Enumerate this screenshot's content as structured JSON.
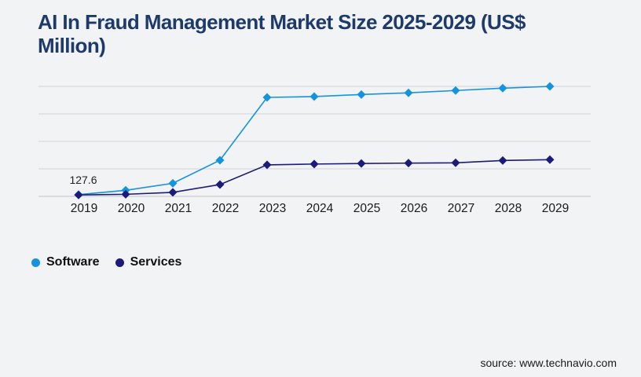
{
  "header": {
    "title": "AI In Fraud Management Market Size 2025-2029 (US$ Million)"
  },
  "chart_data": {
    "type": "line",
    "title": "AI In Fraud Management Market Size 2025-2029 (US$ Million)",
    "categories": [
      "2019",
      "2020",
      "2021",
      "2022",
      "2023",
      "2024",
      "2025",
      "2026",
      "2027",
      "2028",
      "2029"
    ],
    "series": [
      {
        "name": "Software",
        "color": "#1593dd",
        "values": [
          127.6,
          440,
          950,
          2630,
          7200,
          7260,
          7410,
          7530,
          7700,
          7870,
          8000
        ]
      },
      {
        "name": "Services",
        "color": "#1c1c78",
        "values": [
          100,
          150,
          290,
          860,
          2290,
          2350,
          2390,
          2420,
          2440,
          2610,
          2670
        ]
      }
    ],
    "annotation": {
      "text": "127.6",
      "series": "Software",
      "category": "2019"
    },
    "xlabel": "",
    "ylabel": "",
    "ylim": [
      0,
      8000
    ],
    "grid_step": 2000,
    "grid": "horizontal",
    "marker": "diamond",
    "legend_position": "bottom-left"
  },
  "footer": {
    "source_text": "source: www.technavio.com"
  },
  "theme": {
    "background": "#f2f3f5",
    "gridline_color": "#d2d3d7",
    "baseline_color": "#c2c3c7",
    "tick_label_color": "#1a1a1a",
    "title_color": "#1d3a6b"
  }
}
